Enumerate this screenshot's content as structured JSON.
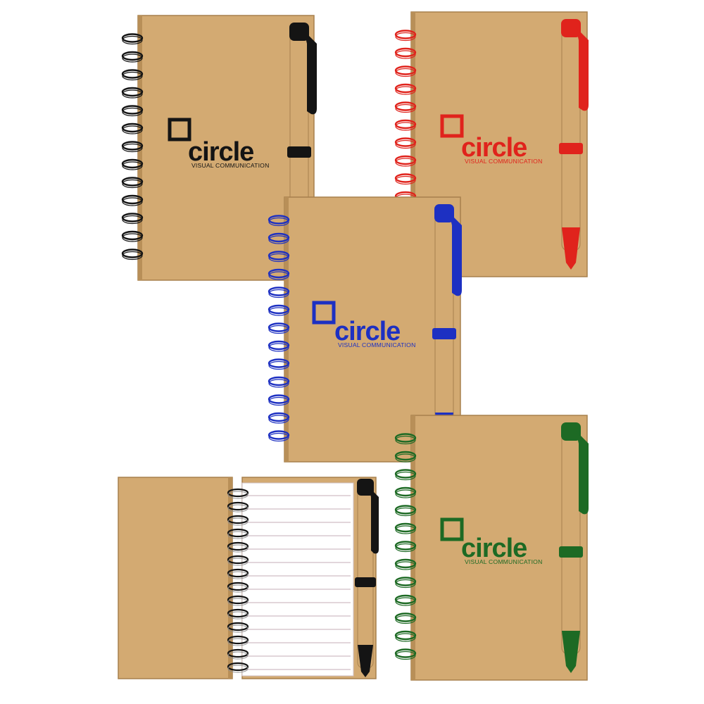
{
  "logo": {
    "word": "circle",
    "tagline": "VISUAL COMMUNICATION"
  },
  "colors": {
    "kraft": "#d3aa72",
    "kraft_dark": "#b88f58",
    "kraft_edge": "#a7804d",
    "paper": "#ffffff",
    "paper_line": "#d8c8cf"
  },
  "products": [
    {
      "variant": "black",
      "accent": "#141414",
      "view": "closed"
    },
    {
      "variant": "red",
      "accent": "#e0231c",
      "view": "closed"
    },
    {
      "variant": "blue",
      "accent": "#1d30c2",
      "view": "closed"
    },
    {
      "variant": "green",
      "accent": "#1d6a24",
      "view": "closed"
    },
    {
      "variant": "black",
      "accent": "#141414",
      "view": "open"
    }
  ]
}
